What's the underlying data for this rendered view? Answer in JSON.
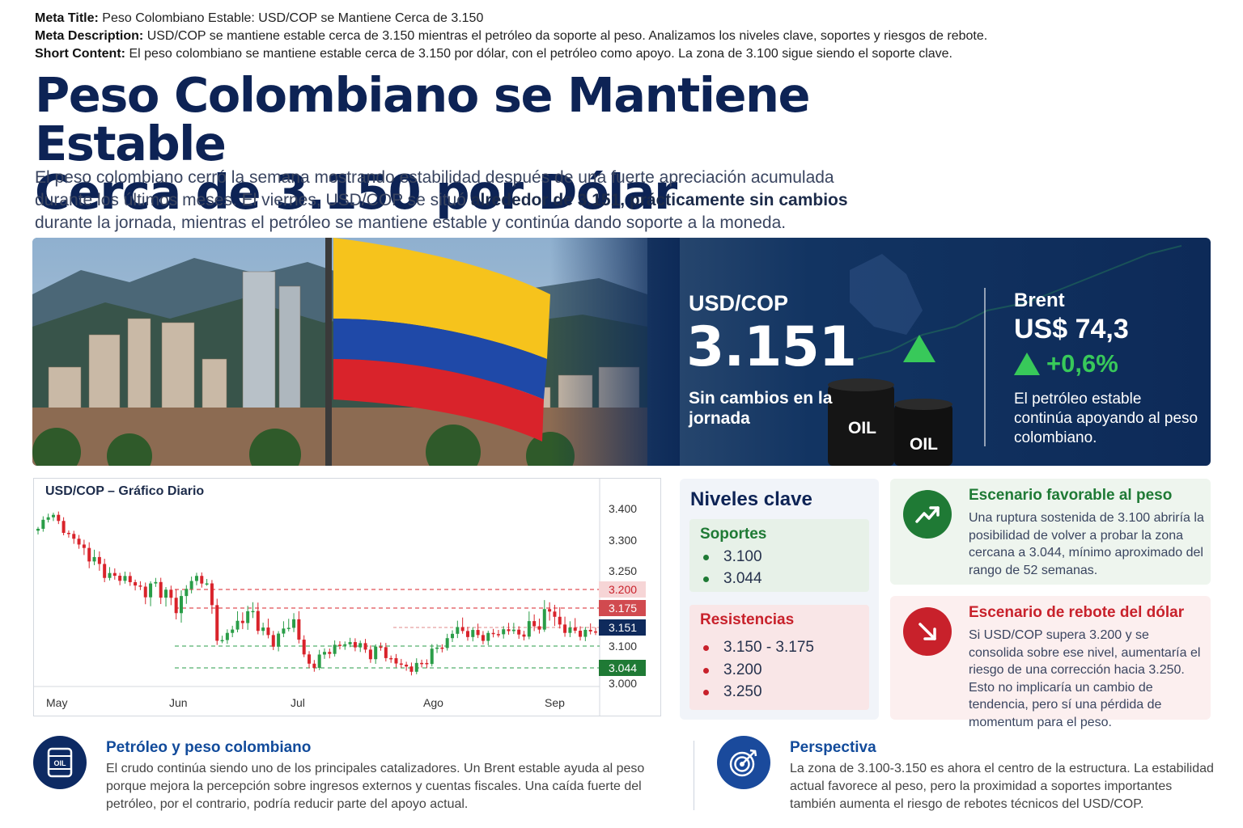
{
  "meta": {
    "title_label": "Meta Title:",
    "title_text": "Peso Colombiano Estable: USD/COP se Mantiene Cerca de 3.150",
    "description_label": "Meta Description:",
    "description_text": "USD/COP se mantiene estable cerca de 3.150 mientras el petróleo da soporte al peso. Analizamos los niveles clave, soportes y riesgos de rebote.",
    "short_label": "Short Content:",
    "short_text": "El peso colombiano se mantiene estable cerca de 3.150 por dólar, con el petróleo como apoyo. La zona de 3.100 sigue siendo el soporte clave."
  },
  "headline": {
    "line1": "Peso Colombiano se Mantiene Estable",
    "line2": "Cerca de 3.150 por Dólar"
  },
  "intro": {
    "part1": "El peso colombiano cerró la semana mostrando estabilidad después de una fuerte apreciación acumulada durante los últimos meses. El viernes, USD/COP se situó ",
    "highlight": "alrededor de 3.151, prácticamente sin cambios",
    "part2": " durante la jornada, mientras el petróleo se mantiene estable y continúa dando soporte a la moneda."
  },
  "hero": {
    "usd_label": "USD/COP",
    "usd_value": "3.151",
    "usd_note": "Sin cambios en la jornada",
    "barrel_label": "OIL",
    "brent_label": "Brent",
    "brent_value": "US$ 74,3",
    "brent_change": "+0,6%",
    "brent_note": "El petróleo estable continúa apoyando al peso colombiano.",
    "colors": {
      "up": "#38c95a",
      "flag_yellow": "#f6c31c",
      "flag_blue": "#1f49a8",
      "flag_red": "#d9232b"
    },
    "icons": [
      "triangle-up-icon",
      "oil-barrel-icon",
      "colombia-flag",
      "colombia-map"
    ]
  },
  "chart": {
    "title": "USD/COP – Gráfico Diario",
    "months": [
      "May",
      "Jun",
      "Jul",
      "Ago",
      "Sep"
    ],
    "y_ticks": [
      "3.400",
      "3.300",
      "3.250",
      "3.100",
      "3.000"
    ],
    "tags": [
      {
        "label": "3.200",
        "style": "red-light"
      },
      {
        "label": "3.175",
        "style": "red"
      },
      {
        "label": "3.151",
        "style": "navy"
      },
      {
        "label": "3.044",
        "style": "green"
      }
    ]
  },
  "chart_data": {
    "type": "candlestick",
    "title": "USD/COP – Gráfico Diario",
    "x_labels": [
      "May",
      "Jun",
      "Jul",
      "Ago",
      "Sep"
    ],
    "y_tick_labels": [
      "3.400",
      "3.300",
      "3.250",
      "3.100",
      "3.000"
    ],
    "close_path": [
      3330,
      3390,
      3350,
      3310,
      3290,
      3270,
      3250,
      3230,
      3235,
      3210,
      3200,
      3215,
      3190,
      3175,
      3210,
      3240,
      3195,
      3100,
      3150,
      3160,
      3170,
      3140,
      3110,
      3150,
      3160,
      3050,
      3060,
      3090,
      3100,
      3110,
      3100,
      3080,
      3095,
      3060,
      3050,
      3040,
      3060,
      3090,
      3110,
      3150,
      3135,
      3130,
      3125,
      3140,
      3145,
      3130,
      3150,
      3160,
      3175,
      3140,
      3145,
      3130,
      3151
    ],
    "reference_lines": [
      {
        "value": 3200,
        "style": "red-dashed",
        "label": "3.200"
      },
      {
        "value": 3175,
        "style": "red-dashed",
        "label": "3.175"
      },
      {
        "value": 3151,
        "style": "current",
        "label": "3.151"
      },
      {
        "value": 3100,
        "style": "green-dashed",
        "label": "3.100"
      },
      {
        "value": 3044,
        "style": "green-dashed",
        "label": "3.044"
      }
    ],
    "colors": {
      "up": "#2a9d48",
      "down": "#d9232b"
    },
    "grid": false
  },
  "levels": {
    "title": "Niveles clave",
    "supports_title": "Soportes",
    "supports": [
      "3.100",
      "3.044"
    ],
    "resistances_title": "Resistencias",
    "resistances": [
      "3.150 - 3.175",
      "3.200",
      "3.250"
    ],
    "colors": {
      "support": "#1f7a35",
      "resistance": "#c8212b"
    }
  },
  "scenarios": {
    "favorable": {
      "title": "Escenario favorable al peso",
      "text": "Una ruptura sostenida de 3.100 abriría la posibilidad de volver a probar la zona cercana a 3.044, mínimo aproximado del rango de 52 semanas.",
      "icon": "trend-up-icon",
      "color": "#1f7a35"
    },
    "rebound": {
      "title": "Escenario de rebote del dólar",
      "text": "Si USD/COP supera 3.200 y se consolida sobre ese nivel, aumentaría el riesgo de una corrección hacia 3.250. Esto no implicaría un cambio de tendencia, pero sí una pérdida de momentum para el peso.",
      "icon": "arrow-down-right-icon",
      "color": "#c8212b"
    }
  },
  "bottom": {
    "oil": {
      "title": "Petróleo y peso colombiano",
      "text": "El crudo continúa siendo uno de los principales catalizadores. Un Brent estable ayuda al peso porque mejora la percepción sobre ingresos externos y cuentas fiscales. Una caída fuerte del petróleo, por el contrario, podría reducir parte del apoyo actual.",
      "icon_label": "OIL"
    },
    "outlook": {
      "title": "Perspectiva",
      "text": "La zona de 3.100-3.150 es ahora el centro de la estructura. La estabilidad actual favorece al peso, pero la proximidad a soportes importantes también aumenta el riesgo de rebotes técnicos del USD/COP."
    }
  }
}
